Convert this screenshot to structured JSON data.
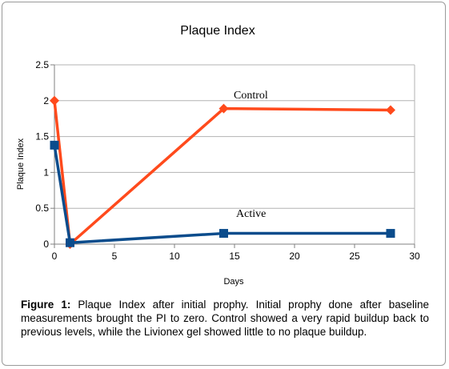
{
  "chart_data": {
    "type": "line",
    "title": "Plaque Index",
    "xlabel": "Days",
    "ylabel": "Plaque Index",
    "xlim": [
      0,
      30
    ],
    "ylim": [
      0,
      2.5
    ],
    "x_ticks": [
      "0",
      "5",
      "10",
      "15",
      "20",
      "25",
      "30"
    ],
    "y_ticks": [
      "0",
      "0.5",
      "1",
      "1.5",
      "2",
      "2.5"
    ],
    "grid": "horizontal",
    "series": [
      {
        "name": "Control",
        "color": "#ff4a1c",
        "marker": "diamond",
        "x": [
          0,
          1.3,
          14.1,
          28
        ],
        "y": [
          2.0,
          0.0,
          1.89,
          1.87
        ]
      },
      {
        "name": "Active",
        "color": "#0b4c8c",
        "marker": "square",
        "x": [
          0,
          1.3,
          14.1,
          28
        ],
        "y": [
          1.38,
          0.02,
          0.15,
          0.15
        ]
      }
    ]
  },
  "caption": {
    "label": "Figure 1:",
    "text": " Plaque Index after initial prophy. Initial prophy done after baseline measurements brought the PI to zero. Control showed a very rapid buildup back to previous levels, while the Livionex gel showed little to no plaque buildup."
  }
}
